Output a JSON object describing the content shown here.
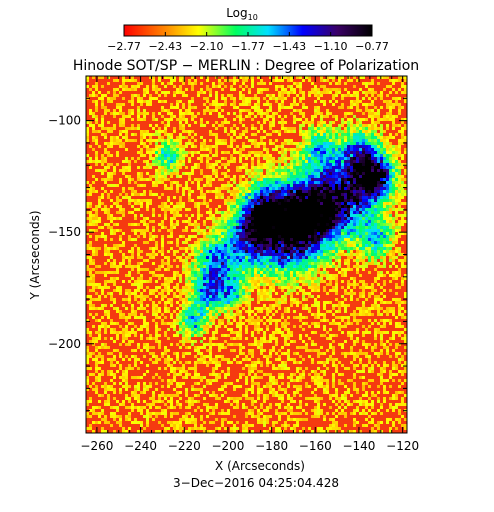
{
  "colorbar": {
    "label_base": "Log",
    "label_sub": "10",
    "tick_labels": [
      "−2.77",
      "−2.43",
      "−2.10",
      "−1.77",
      "−1.43",
      "−1.10",
      "−0.77"
    ],
    "range": [
      -2.77,
      -0.77
    ]
  },
  "chart_data": {
    "type": "heatmap",
    "title": "Hinode SOT/SP − MERLIN : Degree of Polarization",
    "xlabel": "X (Arcseconds)",
    "ylabel": "Y (Arcseconds)",
    "xlim": [
      -265,
      -118
    ],
    "ylim": [
      -240,
      -80
    ],
    "xticks": [
      -260,
      -240,
      -220,
      -200,
      -180,
      -160,
      -140,
      -120
    ],
    "xtick_labels": [
      "−260",
      "−240",
      "−220",
      "−200",
      "−180",
      "−160",
      "−140",
      "−120"
    ],
    "yticks": [
      -100,
      -150,
      -200
    ],
    "ytick_labels": [
      "−100",
      "−150",
      "−200"
    ],
    "colormap": "rainbow (red low → black high)",
    "value_scale": "log10",
    "value_range": [
      -2.77,
      -0.77
    ],
    "timestamp": "3−Dec−2016 04:25:04.428"
  }
}
